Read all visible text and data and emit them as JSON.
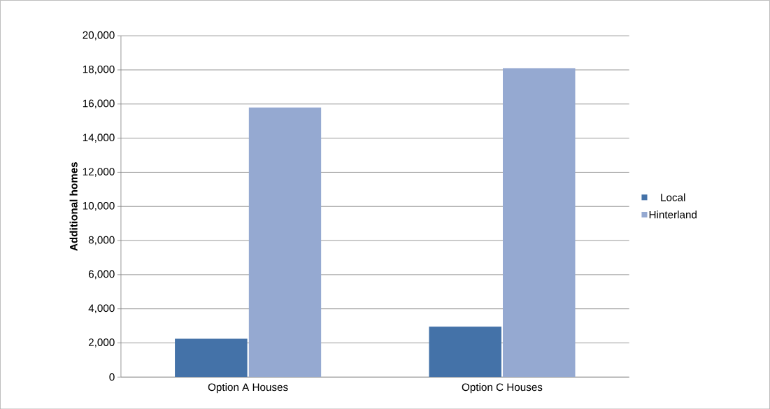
{
  "chart_data": {
    "type": "bar",
    "ylabel": "Additional homes",
    "categories": [
      "Option A Houses",
      "Option C Houses"
    ],
    "series": [
      {
        "name": "Local",
        "color": "#4472a8",
        "values": [
          2250,
          2950
        ]
      },
      {
        "name": "Hinterland",
        "color": "#95a9d1",
        "values": [
          15800,
          18100
        ]
      }
    ],
    "ylim": [
      0,
      20000
    ],
    "yticks": [
      {
        "value": 0,
        "label": "0"
      },
      {
        "value": 2000,
        "label": "2,000"
      },
      {
        "value": 4000,
        "label": "4,000"
      },
      {
        "value": 6000,
        "label": "6,000"
      },
      {
        "value": 8000,
        "label": "8,000"
      },
      {
        "value": 10000,
        "label": "10,000"
      },
      {
        "value": 12000,
        "label": "12,000"
      },
      {
        "value": 14000,
        "label": "14,000"
      },
      {
        "value": 16000,
        "label": "16,000"
      },
      {
        "value": 18000,
        "label": "18,000"
      },
      {
        "value": 20000,
        "label": "20,000"
      }
    ],
    "grid": "y",
    "legend": "right"
  }
}
